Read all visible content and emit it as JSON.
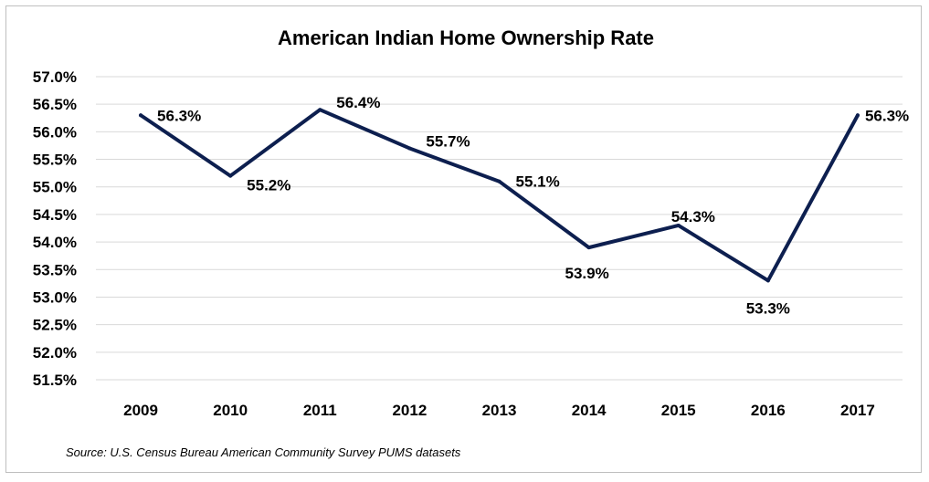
{
  "chart_data": {
    "type": "line",
    "title": "American Indian Home Ownership Rate",
    "xlabel": "",
    "ylabel": "",
    "categories": [
      "2009",
      "2010",
      "2011",
      "2012",
      "2013",
      "2014",
      "2015",
      "2016",
      "2017"
    ],
    "series": [
      {
        "name": "American Indian Home Ownership Rate",
        "values": [
          56.3,
          55.2,
          56.4,
          55.7,
          55.1,
          53.9,
          54.3,
          53.3,
          56.3
        ],
        "labels": [
          "56.3%",
          "55.2%",
          "56.4%",
          "55.7%",
          "55.1%",
          "53.9%",
          "54.3%",
          "53.3%",
          "56.3%"
        ],
        "color": "#0d1f4f"
      }
    ],
    "ylim": [
      51.5,
      57.0
    ],
    "yticks": [
      57.0,
      56.5,
      56.0,
      55.5,
      55.0,
      54.5,
      54.0,
      53.5,
      53.0,
      52.5,
      52.0,
      51.5
    ],
    "ytick_labels": [
      "57.0%",
      "56.5%",
      "56.0%",
      "55.5%",
      "55.0%",
      "54.5%",
      "54.0%",
      "53.5%",
      "53.0%",
      "52.5%",
      "52.0%",
      "51.5%"
    ],
    "grid": true,
    "legend": "none",
    "source": "Source: U.S. Census Bureau American Community Survey PUMS datasets"
  }
}
